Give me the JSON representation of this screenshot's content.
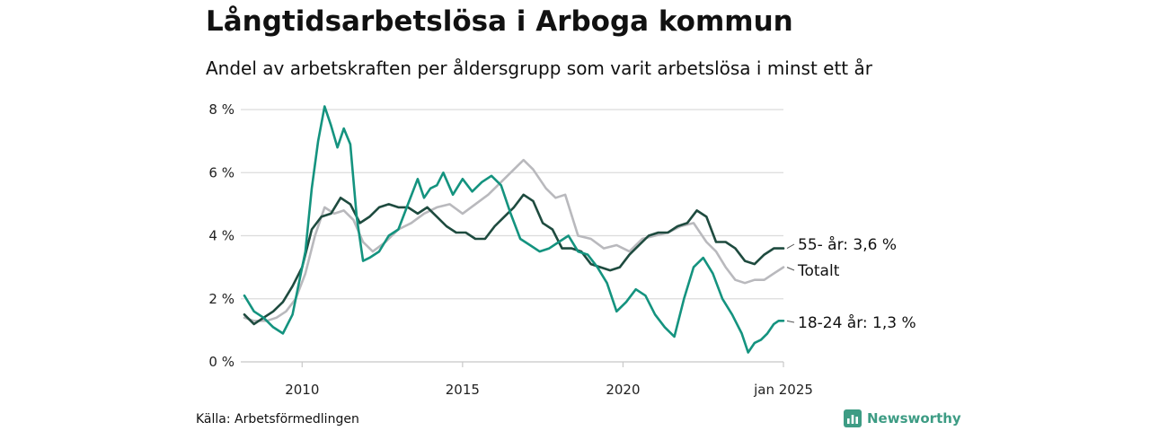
{
  "header": {
    "title": "Långtidsarbetslösa i Arboga kommun",
    "subtitle": "Andel av arbetskraften per åldersgrupp som varit arbetslösa i minst ett år"
  },
  "footer": {
    "source": "Källa: Arbetsförmedlingen",
    "brand": "Newsworthy"
  },
  "colors": {
    "youth": "#14937f",
    "senior": "#1e4b3f",
    "total": "#b9b9bd",
    "grid": "#dcdcdc",
    "brand": "#3d9c84"
  },
  "chart_data": {
    "type": "line",
    "title": "Långtidsarbetslösa i Arboga kommun",
    "subtitle": "Andel av arbetskraften per åldersgrupp som varit arbetslösa i minst ett år",
    "x_range": [
      2008.2,
      2025.0
    ],
    "ylim": [
      0,
      8
    ],
    "y_ticks": [
      {
        "value": 0,
        "label": "0 %"
      },
      {
        "value": 2,
        "label": "2 %"
      },
      {
        "value": 4,
        "label": "4 %"
      },
      {
        "value": 6,
        "label": "6 %"
      },
      {
        "value": 8,
        "label": "8 %"
      }
    ],
    "x_ticks": [
      {
        "value": 2010,
        "label": "2010"
      },
      {
        "value": 2015,
        "label": "2015"
      },
      {
        "value": 2020,
        "label": "2020"
      },
      {
        "value": 2025,
        "label": "jan 2025"
      }
    ],
    "grid": true,
    "series": [
      {
        "key": "total",
        "label": "Totalt",
        "color": "#b9b9bd",
        "x": [
          2008.2,
          2008.5,
          2008.9,
          2009.2,
          2009.5,
          2009.8,
          2010.1,
          2010.4,
          2010.7,
          2011.0,
          2011.3,
          2011.6,
          2011.9,
          2012.2,
          2012.6,
          2013.0,
          2013.4,
          2013.8,
          2014.2,
          2014.6,
          2015.0,
          2015.4,
          2015.8,
          2016.2,
          2016.6,
          2016.9,
          2017.2,
          2017.6,
          2017.9,
          2018.2,
          2018.6,
          2019.0,
          2019.4,
          2019.8,
          2020.2,
          2020.6,
          2021.0,
          2021.4,
          2021.8,
          2022.2,
          2022.6,
          2022.9,
          2023.2,
          2023.5,
          2023.8,
          2024.1,
          2024.4,
          2024.7,
          2025.0
        ],
        "y": [
          1.4,
          1.3,
          1.3,
          1.4,
          1.6,
          2.0,
          2.8,
          4.0,
          4.9,
          4.7,
          4.8,
          4.5,
          3.8,
          3.5,
          3.8,
          4.2,
          4.4,
          4.7,
          4.9,
          5.0,
          4.7,
          5.0,
          5.3,
          5.7,
          6.1,
          6.4,
          6.1,
          5.5,
          5.2,
          5.3,
          4.0,
          3.9,
          3.6,
          3.7,
          3.5,
          3.9,
          4.0,
          4.1,
          4.3,
          4.4,
          3.8,
          3.5,
          3.0,
          2.6,
          2.5,
          2.6,
          2.6,
          2.8,
          3.0
        ]
      },
      {
        "key": "senior",
        "label": "55- år: 3,6 %",
        "color": "#1e4b3f",
        "x": [
          2008.2,
          2008.5,
          2008.8,
          2009.1,
          2009.4,
          2009.7,
          2010.0,
          2010.3,
          2010.6,
          2010.9,
          2011.2,
          2011.5,
          2011.8,
          2012.1,
          2012.4,
          2012.7,
          2013.0,
          2013.3,
          2013.6,
          2013.9,
          2014.2,
          2014.5,
          2014.8,
          2015.1,
          2015.4,
          2015.7,
          2016.0,
          2016.3,
          2016.6,
          2016.9,
          2017.2,
          2017.5,
          2017.8,
          2018.1,
          2018.4,
          2018.7,
          2019.0,
          2019.3,
          2019.6,
          2019.9,
          2020.2,
          2020.5,
          2020.8,
          2021.1,
          2021.4,
          2021.7,
          2022.0,
          2022.3,
          2022.6,
          2022.9,
          2023.2,
          2023.5,
          2023.8,
          2024.1,
          2024.4,
          2024.7,
          2025.0
        ],
        "y": [
          1.5,
          1.2,
          1.4,
          1.6,
          1.9,
          2.4,
          3.0,
          4.2,
          4.6,
          4.7,
          5.2,
          5.0,
          4.4,
          4.6,
          4.9,
          5.0,
          4.9,
          4.9,
          4.7,
          4.9,
          4.6,
          4.3,
          4.1,
          4.1,
          3.9,
          3.9,
          4.3,
          4.6,
          4.9,
          5.3,
          5.1,
          4.4,
          4.2,
          3.6,
          3.6,
          3.5,
          3.1,
          3.0,
          2.9,
          3.0,
          3.4,
          3.7,
          4.0,
          4.1,
          4.1,
          4.3,
          4.4,
          4.8,
          4.6,
          3.8,
          3.8,
          3.6,
          3.2,
          3.1,
          3.4,
          3.6,
          3.6
        ]
      },
      {
        "key": "youth",
        "label": "18-24 år: 1,3 %",
        "color": "#14937f",
        "x": [
          2008.2,
          2008.5,
          2008.8,
          2009.1,
          2009.4,
          2009.7,
          2009.9,
          2010.1,
          2010.3,
          2010.5,
          2010.7,
          2010.9,
          2011.1,
          2011.3,
          2011.5,
          2011.7,
          2011.9,
          2012.1,
          2012.4,
          2012.7,
          2013.0,
          2013.3,
          2013.6,
          2013.8,
          2014.0,
          2014.2,
          2014.4,
          2014.7,
          2015.0,
          2015.3,
          2015.6,
          2015.9,
          2016.2,
          2016.5,
          2016.8,
          2017.1,
          2017.4,
          2017.7,
          2018.0,
          2018.3,
          2018.6,
          2018.9,
          2019.2,
          2019.5,
          2019.8,
          2020.1,
          2020.4,
          2020.7,
          2021.0,
          2021.3,
          2021.6,
          2021.9,
          2022.2,
          2022.5,
          2022.8,
          2023.1,
          2023.4,
          2023.7,
          2023.9,
          2024.1,
          2024.3,
          2024.5,
          2024.7,
          2024.85,
          2025.0
        ],
        "y": [
          2.1,
          1.6,
          1.4,
          1.1,
          0.9,
          1.5,
          2.5,
          3.5,
          5.5,
          7.0,
          8.1,
          7.5,
          6.8,
          7.4,
          6.9,
          4.6,
          3.2,
          3.3,
          3.5,
          4.0,
          4.2,
          5.0,
          5.8,
          5.2,
          5.5,
          5.6,
          6.0,
          5.3,
          5.8,
          5.4,
          5.7,
          5.9,
          5.6,
          4.7,
          3.9,
          3.7,
          3.5,
          3.6,
          3.8,
          4.0,
          3.5,
          3.4,
          3.0,
          2.5,
          1.6,
          1.9,
          2.3,
          2.1,
          1.5,
          1.1,
          0.8,
          2.0,
          3.0,
          3.3,
          2.8,
          2.0,
          1.5,
          0.9,
          0.3,
          0.6,
          0.7,
          0.9,
          1.2,
          1.3,
          1.3
        ]
      }
    ],
    "end_labels": [
      {
        "series": "senior",
        "text": "55- år: 3,6 %"
      },
      {
        "series": "total",
        "text": "Totalt"
      },
      {
        "series": "youth",
        "text": "18-24 år: 1,3 %"
      }
    ]
  }
}
